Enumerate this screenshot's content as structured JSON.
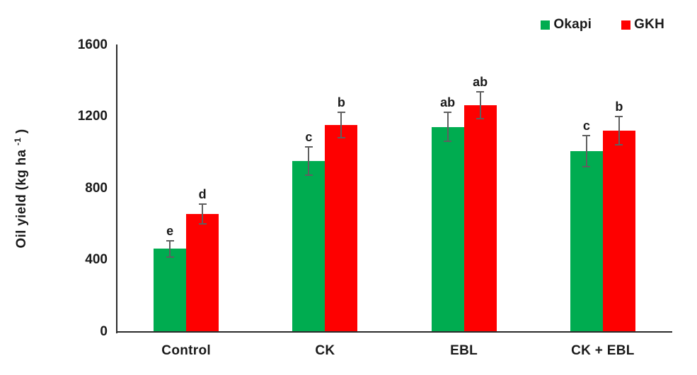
{
  "chart_data": {
    "type": "bar",
    "ylabel": {
      "prefix": "Oil yield (kg ha ",
      "superscript": "-1",
      "suffix": " )"
    },
    "ylim": [
      0,
      1600
    ],
    "yticks": [
      0,
      400,
      800,
      1200,
      1600
    ],
    "categories": [
      "Control",
      "CK",
      "EBL",
      "CK + EBL"
    ],
    "series": [
      {
        "name": "Okapi",
        "color": "#00AC50",
        "values": [
          460,
          950,
          1140,
          1005
        ],
        "errors": [
          45,
          80,
          80,
          85
        ],
        "sig_letters": [
          "e",
          "c",
          "ab",
          "c"
        ]
      },
      {
        "name": "GKH",
        "color": "#FE0000",
        "values": [
          655,
          1150,
          1260,
          1120
        ],
        "errors": [
          55,
          70,
          75,
          80
        ],
        "sig_letters": [
          "d",
          "b",
          "ab",
          "b"
        ]
      }
    ],
    "grid": false,
    "legend_position": "top-right",
    "axis_color": "#2b2b2b",
    "error_bar_color": "#5f5f5f",
    "text_color": "#1a1a1a"
  }
}
